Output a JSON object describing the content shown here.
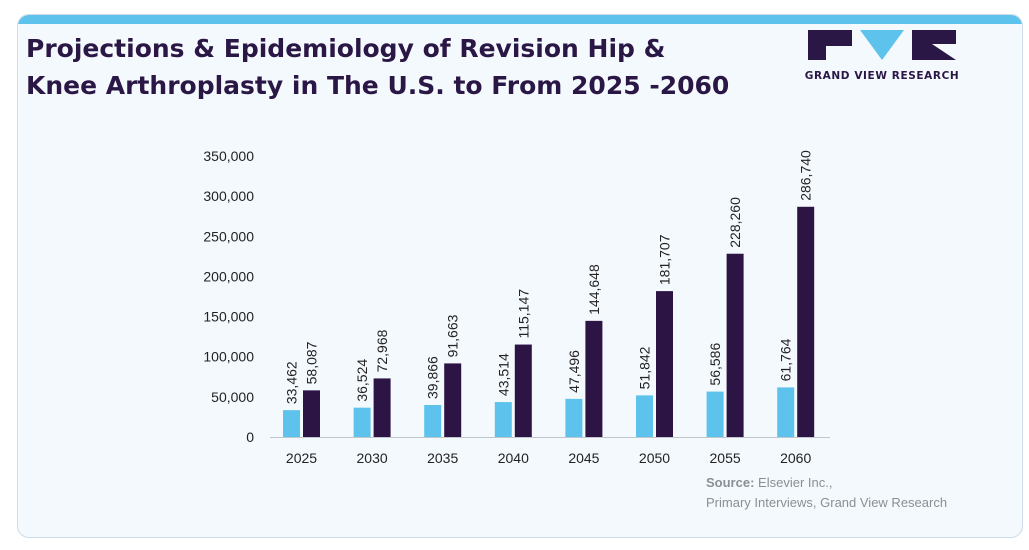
{
  "header": {
    "title_line1": "Projections & Epidemiology of Revision Hip &",
    "title_line2": "Knee Arthroplasty in The U.S. to From 2025 -2060"
  },
  "brand": {
    "logo_text": "GRAND VIEW RESEARCH",
    "logo_icon": "gvr-logo-icon"
  },
  "source": {
    "label": "Source:",
    "line1": "Elsevier Inc.,",
    "line2": "Primary Interviews, Grand View Research"
  },
  "colors": {
    "accent_bar": "#5ec3ec",
    "series1": "#5ec3ec",
    "series2": "#2c1445",
    "title": "#2a1745",
    "background": "#f4f9fd"
  },
  "chart_data": {
    "type": "bar",
    "categories": [
      "2025",
      "2030",
      "2035",
      "2040",
      "2045",
      "2050",
      "2055",
      "2060"
    ],
    "series": [
      {
        "values": [
          33462,
          36524,
          39866,
          43514,
          47496,
          51842,
          56586,
          61764
        ]
      },
      {
        "values": [
          58087,
          72968,
          91663,
          115147,
          144648,
          181707,
          228260,
          286740
        ]
      }
    ],
    "series_labels": [
      [
        "33,462",
        "36,524",
        "39,866",
        "43,514",
        "47,496",
        "51,842",
        "56,586",
        "61,764"
      ],
      [
        "58,087",
        "72,968",
        "91,663",
        "115,147",
        "144,648",
        "181,707",
        "228,260",
        "286,740"
      ]
    ],
    "yticks": [
      0,
      50000,
      100000,
      150000,
      200000,
      250000,
      300000,
      350000
    ],
    "ytick_labels": [
      "0",
      "50,000",
      "100,000",
      "150,000",
      "200,000",
      "250,000",
      "300,000",
      "350,000"
    ],
    "ylim": [
      0,
      350000
    ],
    "grid": false,
    "legend": "none",
    "title": "",
    "xlabel": "",
    "ylabel": ""
  }
}
